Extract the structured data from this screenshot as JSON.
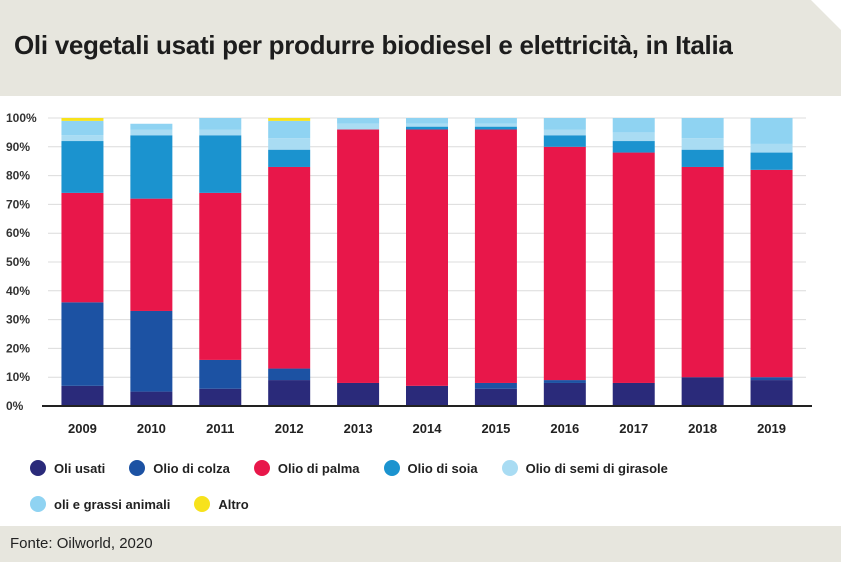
{
  "title": "Oli vegetali usati per produrre biodiesel e elettricità, in Italia",
  "source": "Fonte: Oilworld, 2020",
  "colors": {
    "Oli usati": "#2a2a7a",
    "Olio di colza": "#1c52a3",
    "Olio di palma": "#e8174a",
    "Olio di soia": "#1b93cf",
    "Olio di semi di girasole": "#a9dcf3",
    "oli e grassi animali": "#8fd3f2",
    "Altro": "#f7e21c"
  },
  "legend": [
    [
      "Oli usati",
      "Olio di colza",
      "Olio di palma",
      "Olio di soia",
      "Olio di semi di girasole"
    ],
    [
      "oli e grassi animali",
      "Altro"
    ]
  ],
  "chart_data": {
    "type": "bar",
    "stacked": true,
    "title": "Oli vegetali usati per produrre biodiesel e elettricità, in Italia",
    "categories": [
      "2009",
      "2010",
      "2011",
      "2012",
      "2013",
      "2014",
      "2015",
      "2016",
      "2017",
      "2018",
      "2019"
    ],
    "ylim": [
      0,
      100
    ],
    "yticks": [
      "0%",
      "10%",
      "20%",
      "30%",
      "40%",
      "50%",
      "60%",
      "70%",
      "80%",
      "90%",
      "100%"
    ],
    "grid": true,
    "legend_position": "bottom",
    "series": [
      {
        "name": "Oli usati",
        "values": [
          7,
          5,
          6,
          9,
          8,
          7,
          6,
          8,
          8,
          10,
          9
        ]
      },
      {
        "name": "Olio di colza",
        "values": [
          29,
          28,
          10,
          4,
          0,
          0,
          2,
          1,
          0,
          0,
          1
        ]
      },
      {
        "name": "Olio di palma",
        "values": [
          38,
          39,
          58,
          70,
          88,
          89,
          88,
          81,
          80,
          73,
          72
        ]
      },
      {
        "name": "Olio di soia",
        "values": [
          18,
          22,
          20,
          6,
          0,
          1,
          1,
          4,
          4,
          6,
          6
        ]
      },
      {
        "name": "Olio di semi di girasole",
        "values": [
          2,
          2,
          2,
          4,
          2,
          1,
          1,
          2,
          3,
          4,
          3
        ]
      },
      {
        "name": "oli e grassi animali",
        "values": [
          5,
          2,
          4,
          6,
          2,
          2,
          2,
          4,
          5,
          7,
          9
        ]
      },
      {
        "name": "Altro",
        "values": [
          1,
          0,
          0,
          1,
          0,
          0,
          0,
          0,
          0,
          0,
          0
        ]
      }
    ]
  }
}
